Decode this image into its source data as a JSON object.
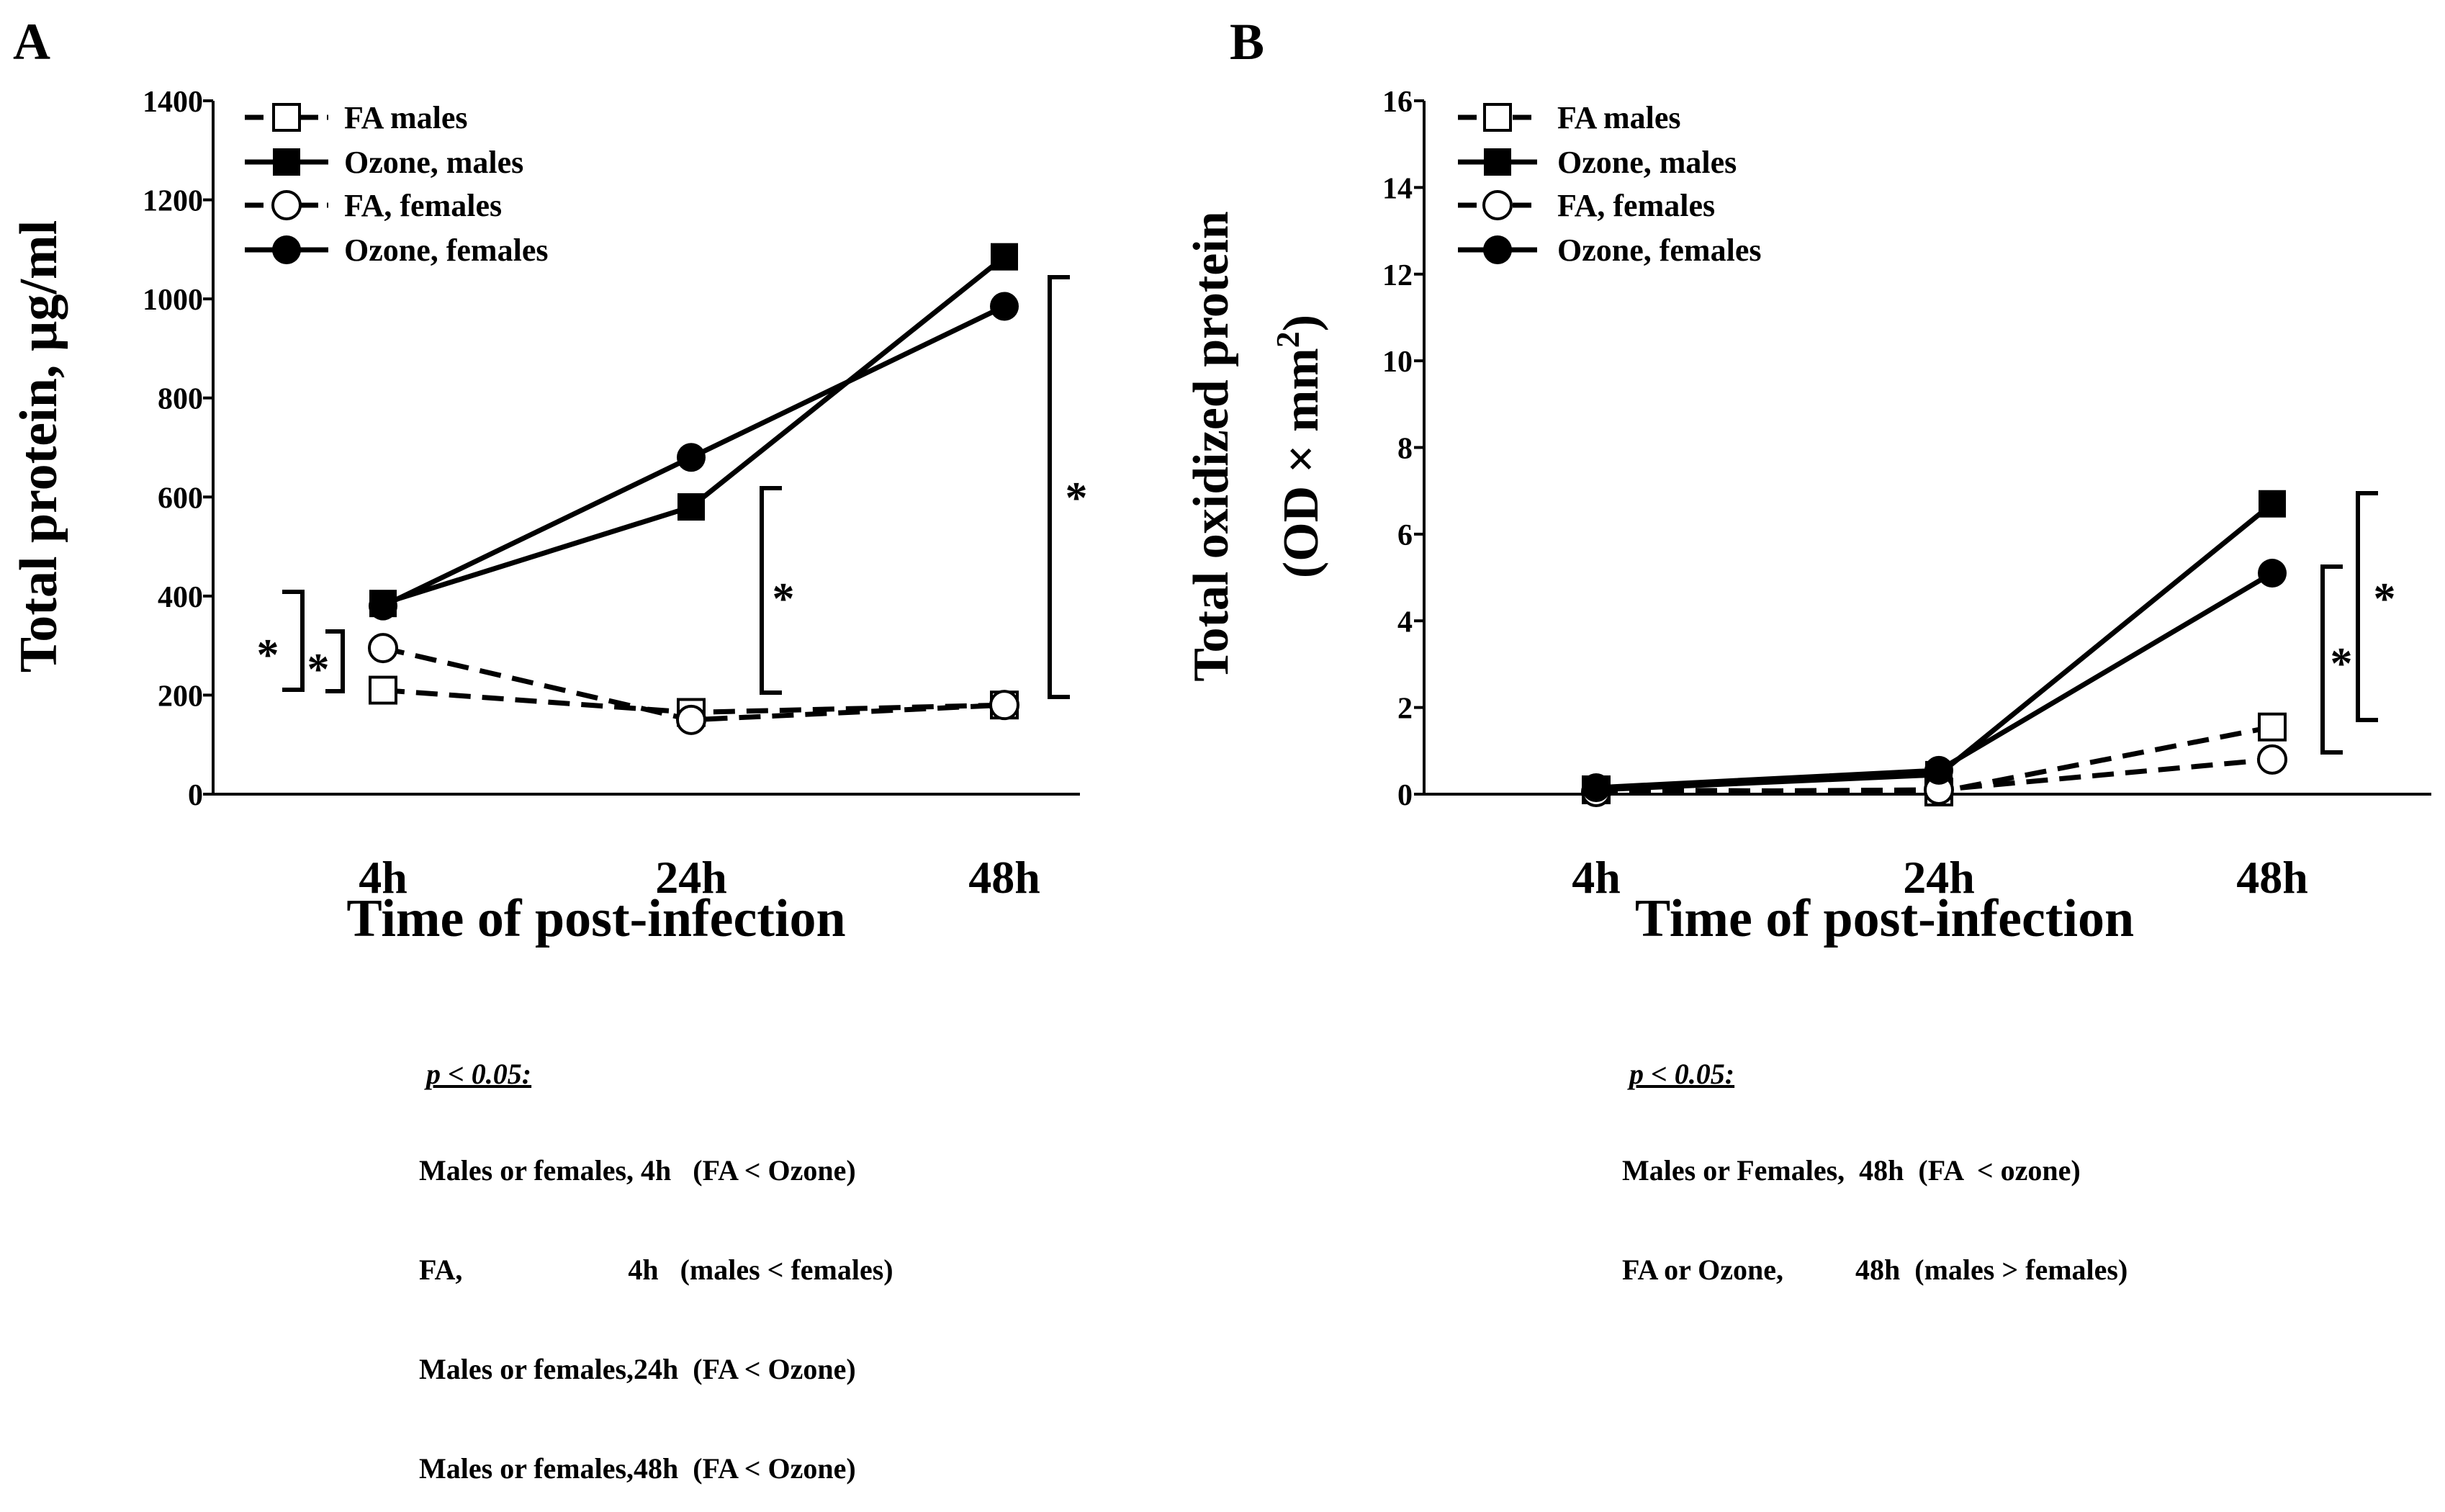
{
  "charts": [
    {
      "panel_label": "A",
      "chart_data": {
        "type": "line",
        "title": "",
        "xlabel": "Time of post-infection",
        "ylabel": "Total protein, µg/ml",
        "categories": [
          "4h",
          "24h",
          "48h"
        ],
        "ylim": [
          0,
          1400
        ],
        "yticks": [
          "0",
          "200",
          "400",
          "600",
          "800",
          "1000",
          "1200",
          "1400"
        ],
        "legend_position": "top-left",
        "series": [
          {
            "name": "FA males",
            "marker": "open-square",
            "line": "dashed",
            "values": [
              210,
              165,
              180
            ]
          },
          {
            "name": "Ozone, males",
            "marker": "filled-square",
            "line": "solid",
            "values": [
              385,
              580,
              1085
            ]
          },
          {
            "name": "FA, females",
            "marker": "open-circle",
            "line": "dashed",
            "values": [
              295,
              150,
              180
            ]
          },
          {
            "name": "Ozone, females",
            "marker": "filled-circle",
            "line": "solid",
            "values": [
              380,
              680,
              985
            ]
          }
        ],
        "significance_marks": [
          "*",
          "*",
          "*",
          "*"
        ]
      },
      "notes": {
        "heading": "p < 0.05:",
        "lines": [
          "Males or females, 4h   (FA < Ozone)",
          "FA,                       4h   (males < females)",
          "Males or females,24h  (FA < Ozone)",
          "Males or females,48h  (FA < Ozone)"
        ]
      }
    },
    {
      "panel_label": "B",
      "chart_data": {
        "type": "line",
        "title": "",
        "xlabel": "Time of post-infection",
        "ylabel_line1": "Total oxidized protein",
        "ylabel_line2_prefix": "(OD × mm",
        "ylabel_line2_sup": "2",
        "ylabel_line2_suffix": ")",
        "categories": [
          "4h",
          "24h",
          "48h"
        ],
        "ylim": [
          0,
          16
        ],
        "yticks": [
          "0",
          "2",
          "4",
          "6",
          "8",
          "10",
          "12",
          "14",
          "16"
        ],
        "legend_position": "top-left",
        "series": [
          {
            "name": "FA males",
            "marker": "open-square",
            "line": "dashed",
            "values": [
              0.1,
              0.05,
              1.55
            ]
          },
          {
            "name": "Ozone, males",
            "marker": "filled-square",
            "line": "solid",
            "values": [
              0.1,
              0.45,
              6.7
            ]
          },
          {
            "name": "FA, females",
            "marker": "open-circle",
            "line": "dashed",
            "values": [
              0.05,
              0.1,
              0.8
            ]
          },
          {
            "name": "Ozone, females",
            "marker": "filled-circle",
            "line": "solid",
            "values": [
              0.15,
              0.55,
              5.1
            ]
          }
        ],
        "significance_marks": [
          "*",
          "*"
        ]
      },
      "notes": {
        "heading": "p < 0.05:",
        "lines": [
          "Males or Females,  48h  (FA  < ozone)",
          "FA or Ozone,          48h  (males > females)"
        ]
      }
    }
  ]
}
